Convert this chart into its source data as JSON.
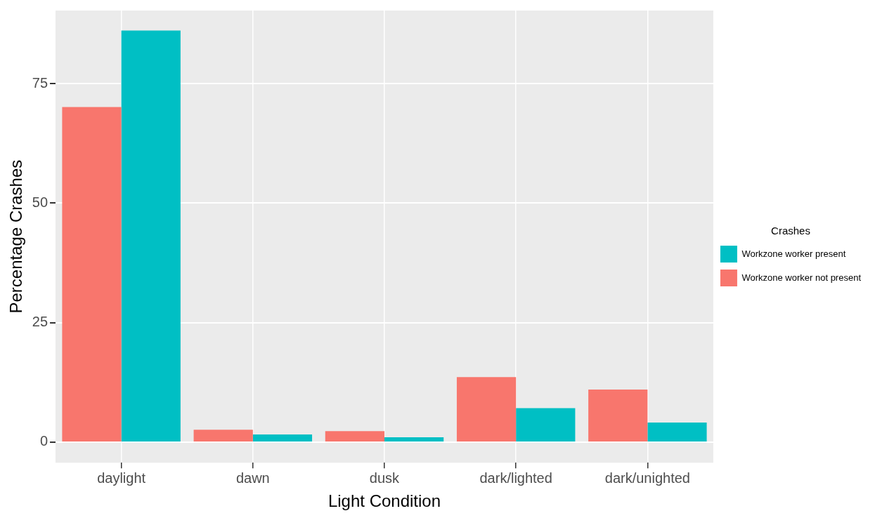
{
  "chart_data": {
    "type": "bar",
    "xlabel": "Light Condition",
    "ylabel": "Percentage Crashes",
    "legend_title": "Crashes",
    "categories": [
      "daylight",
      "dawn",
      "dusk",
      "dark/lighted",
      "dark/unighted"
    ],
    "series": [
      {
        "name": "Workzone worker not present",
        "color": "#f8766d",
        "values": [
          70.1,
          2.6,
          2.3,
          13.6,
          11
        ]
      },
      {
        "name": "Workzone worker present",
        "color": "#00bfc4",
        "values": [
          86.1,
          1.6,
          1.0,
          7.1,
          4.1
        ]
      }
    ],
    "ylim": [
      -4.3,
      90.3
    ],
    "yticks": [
      0,
      25,
      50,
      75
    ],
    "grid": true,
    "legend": "right"
  }
}
